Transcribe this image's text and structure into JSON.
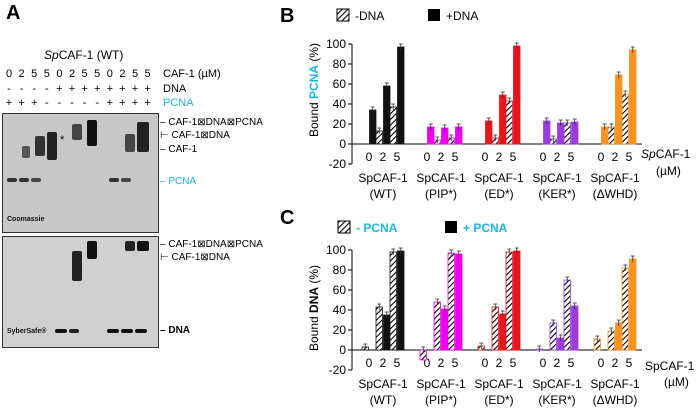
{
  "panelA": {
    "letter": "A",
    "title_italic": "Sp",
    "title_rest": "CAF-1 (WT)",
    "conc_values": [
      "0",
      "2",
      "5",
      "5",
      "0",
      "2",
      "5",
      "5",
      "0",
      "2",
      "5",
      "5"
    ],
    "conc_label": "CAF-1 (µM)",
    "dna_row": [
      "-",
      "-",
      "-",
      "-",
      "+",
      "+",
      "+",
      "+",
      "+",
      "+",
      "+",
      "+"
    ],
    "dna_label": "DNA",
    "pcna_row": [
      "+",
      "+",
      "+",
      "-",
      "-",
      "-",
      "-",
      "-",
      "+",
      "+",
      "+",
      "+"
    ],
    "pcna_label": "PCNA",
    "coomassie_labels": {
      "complex": "CAF-1⊠DNA⊠PCNA",
      "cafdna": "CAF-1⊠DNA",
      "caf": "CAF-1",
      "pcna": "PCNA"
    },
    "asterisk": "*",
    "coomassie_stain": "Coomassie",
    "syber_labels": {
      "complex": "CAF-1⊠DNA⊠PCNA",
      "cafdna": "CAF-1⊠DNA",
      "dna": "DNA"
    },
    "syber_stain": "SyberSafe®"
  },
  "panelB": {
    "letter": "B",
    "legend": [
      "-DNA",
      "+DNA"
    ],
    "ylabel_pre": "Bound ",
    "ylabel_hl": "PCNA",
    "ylabel_post": " (%)",
    "xtitle_italic": "Sp",
    "xtitle_rest": "CAF-1",
    "xtitle_unit": "(µM)"
  },
  "panelC": {
    "letter": "C",
    "legend": [
      "- PCNA",
      "+ PCNA"
    ],
    "ylabel_pre": "Bound ",
    "ylabel_hl": "DNA",
    "ylabel_post": " (%)",
    "xtitle": "SpCAF-1",
    "xtitle_unit": "(µM)"
  },
  "colors": {
    "cyan": "#1fb3e6",
    "wt": "#111111",
    "pip": "#ee00ee",
    "ed": "#e8141e",
    "ker": "#9a3ddc",
    "whd": "#f7931e"
  },
  "chart_data": [
    {
      "type": "bar",
      "title": "Bound PCNA (%)",
      "ylabel": "Bound PCNA (%)",
      "xlabel": "SpCAF-1 (µM)",
      "ylim": [
        -20,
        100
      ],
      "yticks": [
        -20,
        0,
        20,
        40,
        60,
        80,
        100
      ],
      "series_names": [
        "-DNA",
        "+DNA"
      ],
      "groups": [
        {
          "name": "SpCAF-1",
          "variant": "(WT)",
          "color_key": "wt",
          "concentrations": [
            "0",
            "2",
            "5"
          ],
          "minus": [
            null,
            13,
            37
          ],
          "plus": [
            34,
            58,
            97
          ]
        },
        {
          "name": "SpCAF-1",
          "variant": "(PIP*)",
          "color_key": "pip",
          "concentrations": [
            "0",
            "2",
            "5"
          ],
          "minus": [
            null,
            4,
            6
          ],
          "plus": [
            17,
            16,
            17
          ]
        },
        {
          "name": "SpCAF-1",
          "variant": "(ED*)",
          "color_key": "ed",
          "concentrations": [
            "0",
            "2",
            "5"
          ],
          "minus": [
            null,
            6,
            43
          ],
          "plus": [
            23,
            49,
            98
          ]
        },
        {
          "name": "SpCAF-1",
          "variant": "(KER*)",
          "color_key": "ker",
          "concentrations": [
            "0",
            "2",
            "5"
          ],
          "minus": [
            null,
            5,
            21
          ],
          "plus": [
            23,
            21,
            22
          ]
        },
        {
          "name": "SpCAF-1",
          "variant": "(ΔWHD)",
          "color_key": "whd",
          "concentrations": [
            "0",
            "2",
            "5"
          ],
          "minus": [
            null,
            17,
            50
          ],
          "plus": [
            17,
            69,
            94
          ]
        }
      ]
    },
    {
      "type": "bar",
      "title": "Bound DNA (%)",
      "ylabel": "Bound DNA (%)",
      "xlabel": "SpCAF-1 (µM)",
      "ylim": [
        -20,
        100
      ],
      "yticks": [
        -20,
        0,
        20,
        40,
        60,
        80,
        100
      ],
      "series_names": [
        "- PCNA",
        "+ PCNA"
      ],
      "groups": [
        {
          "name": "SpCAF-1",
          "variant": "(WT)",
          "color_key": "wt",
          "concentrations": [
            "0",
            "2",
            "5"
          ],
          "minus": [
            3,
            43,
            98
          ],
          "plus": [
            null,
            35,
            99
          ]
        },
        {
          "name": "SpCAF-1",
          "variant": "(PIP*)",
          "color_key": "pip",
          "concentrations": [
            "0",
            "2",
            "5"
          ],
          "minus": [
            -10,
            48,
            97
          ],
          "plus": [
            null,
            41,
            96
          ]
        },
        {
          "name": "SpCAF-1",
          "variant": "(ED*)",
          "color_key": "ed",
          "concentrations": [
            "0",
            "2",
            "5"
          ],
          "minus": [
            4,
            43,
            98
          ],
          "plus": [
            null,
            36,
            99
          ]
        },
        {
          "name": "SpCAF-1",
          "variant": "(KER*)",
          "color_key": "ker",
          "concentrations": [
            "0",
            "2",
            "5"
          ],
          "minus": [
            1,
            27,
            70
          ],
          "plus": [
            null,
            12,
            44
          ]
        },
        {
          "name": "SpCAF-1",
          "variant": "(ΔWHD)",
          "color_key": "whd",
          "concentrations": [
            "0",
            "2",
            "5"
          ],
          "minus": [
            11,
            19,
            82
          ],
          "plus": [
            null,
            27,
            91
          ]
        }
      ]
    }
  ]
}
